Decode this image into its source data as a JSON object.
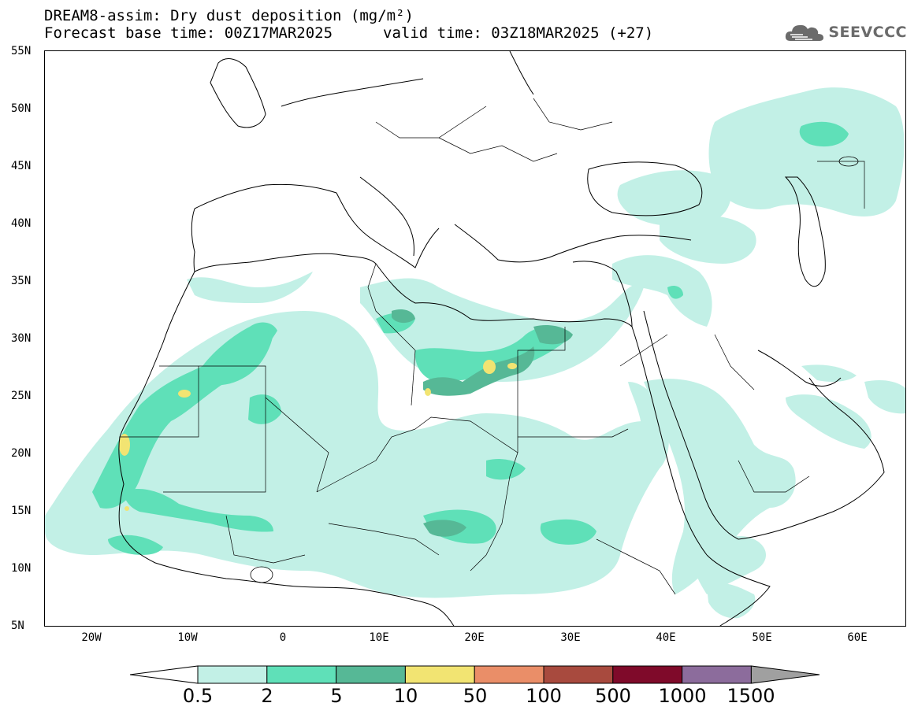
{
  "title": {
    "line1": "DREAM8-assim: Dry dust deposition (mg/m²)",
    "line2_left": "Forecast base time: 00Z17MAR2025",
    "line2_right": "valid time: 03Z18MAR2025 (+27)"
  },
  "logo": {
    "text": "SEEVCCC",
    "icon": "cloud-logo-icon"
  },
  "axes": {
    "lat_labels": [
      "55N",
      "50N",
      "45N",
      "40N",
      "35N",
      "30N",
      "25N",
      "20N",
      "15N",
      "10N",
      "5N"
    ],
    "lon_labels": [
      "20W",
      "10W",
      "0",
      "10E",
      "20E",
      "30E",
      "40E",
      "50E",
      "60E"
    ],
    "lat_range": [
      5,
      55
    ],
    "lon_range": [
      -25,
      65
    ]
  },
  "legend": {
    "labels": [
      "0.5",
      "2",
      "5",
      "10",
      "50",
      "100",
      "500",
      "1000",
      "1500"
    ],
    "colors": [
      "#ffffff",
      "#c2f0e6",
      "#5fe0b8",
      "#56b896",
      "#f2e472",
      "#ea8e68",
      "#a84a3e",
      "#7f0a2a",
      "#8c6c9c",
      "#a0a0a0"
    ]
  }
}
